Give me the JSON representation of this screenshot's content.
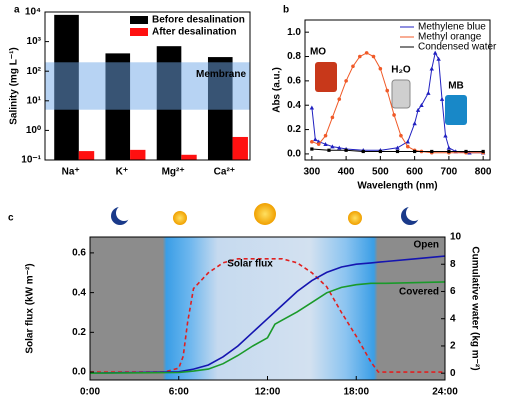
{
  "chart_data": [
    {
      "type": "bar",
      "panel_label": "a",
      "ylabel": "Salinity (mg L⁻¹)",
      "log_scale": true,
      "categories": [
        "Na⁺",
        "K⁺",
        "Mg²⁺",
        "Ca²⁺"
      ],
      "series": [
        {
          "name": "Before desalination",
          "color": "#000000",
          "values": [
            8000,
            400,
            700,
            300
          ]
        },
        {
          "name": "After desalination",
          "color": "#ff1010",
          "values": [
            0.2,
            0.22,
            0.15,
            0.6
          ]
        }
      ],
      "ylim": [
        0.1,
        10000
      ],
      "yticks": [
        {
          "value": 0.1,
          "label": "10⁻¹"
        },
        {
          "value": 1,
          "label": "10⁰"
        },
        {
          "value": 10,
          "label": "10¹"
        },
        {
          "value": 100,
          "label": "10²"
        },
        {
          "value": 1000,
          "label": "10³"
        },
        {
          "value": 10000,
          "label": "10⁴"
        }
      ],
      "membrane_range": [
        5,
        200
      ],
      "membrane_label": "Membrane",
      "legend": "upper right"
    },
    {
      "type": "line",
      "panel_label": "b",
      "xlabel": "Wavelength (nm)",
      "ylabel": "Abs (a.u.)",
      "xlim": [
        280,
        820
      ],
      "xticks": [
        300,
        400,
        500,
        600,
        700,
        800
      ],
      "ylim": [
        -0.05,
        1.1
      ],
      "yticks": [
        {
          "value": 0,
          "label": "0.0"
        },
        0.2,
        0.4,
        0.6,
        0.8,
        {
          "value": 1,
          "label": "1.0"
        }
      ],
      "series": [
        {
          "name": "Methylene blue",
          "color": "#2020c0",
          "marker": "triangle",
          "x": [
            300,
            310,
            320,
            340,
            360,
            380,
            400,
            450,
            500,
            550,
            580,
            600,
            610,
            620,
            640,
            650,
            660,
            670,
            680,
            690,
            700,
            720,
            760,
            800
          ],
          "values": [
            0.38,
            0.12,
            0.1,
            0.08,
            0.06,
            0.05,
            0.04,
            0.03,
            0.03,
            0.05,
            0.1,
            0.25,
            0.36,
            0.4,
            0.5,
            0.7,
            0.83,
            0.78,
            0.45,
            0.15,
            0.05,
            0.02,
            0.01,
            0.01
          ]
        },
        {
          "name": "Methyl orange",
          "color": "#f05a28",
          "marker": "circle",
          "x": [
            300,
            320,
            340,
            360,
            380,
            400,
            420,
            440,
            460,
            480,
            500,
            520,
            540,
            560,
            580,
            600,
            620,
            650,
            700,
            750,
            800
          ],
          "values": [
            0.1,
            0.08,
            0.15,
            0.3,
            0.45,
            0.6,
            0.72,
            0.8,
            0.83,
            0.8,
            0.7,
            0.52,
            0.32,
            0.15,
            0.06,
            0.03,
            0.02,
            0.01,
            0.01,
            0.01,
            0.01
          ]
        },
        {
          "name": "Condensed water",
          "color": "#000000",
          "marker": "square",
          "x": [
            300,
            350,
            400,
            450,
            500,
            550,
            600,
            650,
            700,
            750,
            800
          ],
          "values": [
            0.04,
            0.03,
            0.03,
            0.02,
            0.02,
            0.02,
            0.02,
            0.02,
            0.02,
            0.02,
            0.02
          ]
        }
      ],
      "annotations": [
        "MO",
        "H₂O",
        "MB"
      ],
      "legend": "upper right"
    },
    {
      "type": "line",
      "panel_label": "c",
      "ylabel": "Solar flux (kW m⁻²)",
      "y2label": "Cumulative water (kg m⁻²)",
      "xlim": [
        0,
        24
      ],
      "xticks": [
        {
          "value": 0,
          "label": "0:00"
        },
        {
          "value": 6,
          "label": "6:00"
        },
        {
          "value": 12,
          "label": "12:00"
        },
        {
          "value": 18,
          "label": "18:00"
        },
        {
          "value": 24,
          "label": "24:00"
        }
      ],
      "ylim": [
        -0.04,
        0.68
      ],
      "yticks": [
        {
          "value": 0,
          "label": "0.0"
        },
        0.2,
        0.4,
        0.6
      ],
      "y2lim": [
        -0.5,
        10
      ],
      "y2ticks": [
        0,
        2,
        4,
        6,
        8,
        10
      ],
      "series": [
        {
          "name": "Solar flux",
          "color": "#e02020",
          "dashed": true,
          "x": [
            0,
            5,
            6,
            6.3,
            6.6,
            7,
            8,
            9,
            10,
            12,
            13,
            14,
            15,
            16,
            17,
            18,
            19,
            19.5,
            24
          ],
          "values": [
            0,
            0,
            0.02,
            0.08,
            0.25,
            0.42,
            0.5,
            0.55,
            0.57,
            0.57,
            0.57,
            0.55,
            0.5,
            0.43,
            0.3,
            0.18,
            0.05,
            0,
            0
          ]
        },
        {
          "name": "Open",
          "color": "#1515b0",
          "axis": "y2",
          "x": [
            0,
            6,
            7,
            8,
            9,
            10,
            11,
            12,
            13,
            14,
            15,
            16,
            17,
            18,
            19,
            20,
            22,
            24
          ],
          "values": [
            0,
            0.1,
            0.3,
            0.6,
            1.2,
            2.0,
            3.0,
            4.0,
            5.0,
            6.0,
            6.8,
            7.4,
            7.8,
            8.0,
            8.1,
            8.2,
            8.4,
            8.6
          ]
        },
        {
          "name": "Covered",
          "color": "#1a9a2a",
          "axis": "y2",
          "x": [
            0,
            6,
            7,
            8,
            9,
            10,
            11,
            12,
            12.5,
            13,
            14,
            15,
            16,
            17,
            18,
            19,
            20,
            24
          ],
          "values": [
            0,
            0.05,
            0.15,
            0.3,
            0.7,
            1.3,
            2.0,
            2.6,
            3.6,
            3.9,
            4.5,
            5.2,
            5.9,
            6.3,
            6.5,
            6.6,
            6.6,
            6.7
          ]
        }
      ]
    }
  ]
}
